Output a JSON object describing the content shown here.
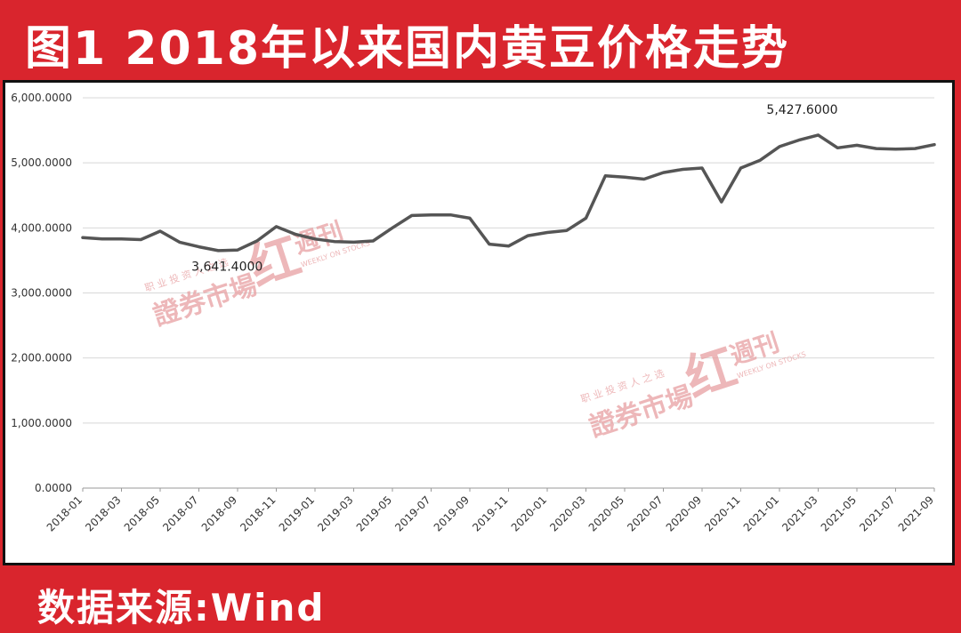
{
  "header": {
    "title": "图1 2018年以来国内黄豆价格走势"
  },
  "footer": {
    "source": "数据来源:Wind"
  },
  "colors": {
    "line": "#555555",
    "brand_red": "#d9252d",
    "grid": "#d8d8d8",
    "watermark": "#e8a0a2"
  },
  "watermark": {
    "tagline": "职 业 投 资 人 之 选",
    "brand": "證券市場",
    "mark": "红",
    "name": "週刊",
    "english": "WEEKLY ON STOCKS"
  },
  "chart_data": {
    "type": "line",
    "ylim": [
      0,
      6000
    ],
    "grid": "horizontal",
    "ytick_labels": [
      "0.0000",
      "1,000.0000",
      "2,000.0000",
      "3,000.0000",
      "4,000.0000",
      "5,000.0000",
      "6,000.0000"
    ],
    "xtick_labels": [
      "2018-01",
      "2018-03",
      "2018-05",
      "2018-07",
      "2018-09",
      "2018-11",
      "2019-01",
      "2019-03",
      "2019-05",
      "2019-07",
      "2019-09",
      "2019-11",
      "2020-01",
      "2020-03",
      "2020-05",
      "2020-07",
      "2020-09",
      "2020-11",
      "2021-01",
      "2021-03",
      "2021-05",
      "2021-07",
      "2021-09"
    ],
    "annotations": [
      {
        "label": "3,641.4000",
        "x": "2018-08",
        "y": 3641.4
      },
      {
        "label": "5,427.6000",
        "x": "2021-03",
        "y": 5427.6
      }
    ],
    "series": [
      {
        "x": [
          "2018-01",
          "2018-02",
          "2018-03",
          "2018-04",
          "2018-05",
          "2018-06",
          "2018-07",
          "2018-08",
          "2018-09",
          "2018-10",
          "2018-11",
          "2018-12",
          "2019-01",
          "2019-02",
          "2019-03",
          "2019-04",
          "2019-05",
          "2019-06",
          "2019-07",
          "2019-08",
          "2019-09",
          "2019-10",
          "2019-11",
          "2019-12",
          "2020-01",
          "2020-02",
          "2020-03",
          "2020-04",
          "2020-05",
          "2020-06",
          "2020-07",
          "2020-08",
          "2020-09",
          "2020-10",
          "2020-11",
          "2020-12",
          "2021-01",
          "2021-02",
          "2021-03",
          "2021-04",
          "2021-05",
          "2021-06",
          "2021-07",
          "2021-08",
          "2021-09"
        ],
        "values": [
          3850,
          3830,
          3830,
          3820,
          3950,
          3780,
          3710,
          3650,
          3660,
          3800,
          4020,
          3900,
          3830,
          3790,
          3780,
          3800,
          4000,
          4190,
          4200,
          4200,
          4150,
          3750,
          3720,
          3880,
          3930,
          3960,
          4150,
          4800,
          4780,
          4750,
          4850,
          4900,
          4920,
          4400,
          4920,
          5040,
          5250,
          5350,
          5427.6,
          5230,
          5270,
          5220,
          5210,
          5220,
          5280
        ]
      }
    ]
  }
}
